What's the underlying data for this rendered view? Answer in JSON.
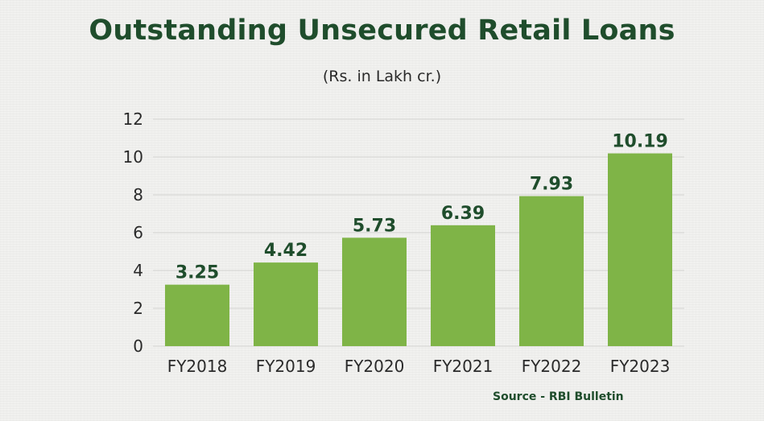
{
  "chart_data": {
    "type": "bar",
    "title": "Outstanding Unsecured Retail Loans",
    "subtitle": "(Rs. in Lakh cr.)",
    "categories": [
      "FY2018",
      "FY2019",
      "FY2020",
      "FY2021",
      "FY2022",
      "FY2023"
    ],
    "values": [
      3.25,
      4.42,
      5.73,
      6.39,
      7.93,
      10.19
    ],
    "value_labels": [
      "3.25",
      "4.42",
      "5.73",
      "6.39",
      "7.93",
      "10.19"
    ],
    "yticks": [
      "0",
      "2",
      "4",
      "6",
      "8",
      "10",
      "12"
    ],
    "ylim": [
      0,
      12
    ],
    "xlabel": "",
    "ylabel": "",
    "grid": true,
    "bar_color": "#7fb447",
    "text_color": "#1f4d2c"
  },
  "source": "Source - RBI Bulletin"
}
